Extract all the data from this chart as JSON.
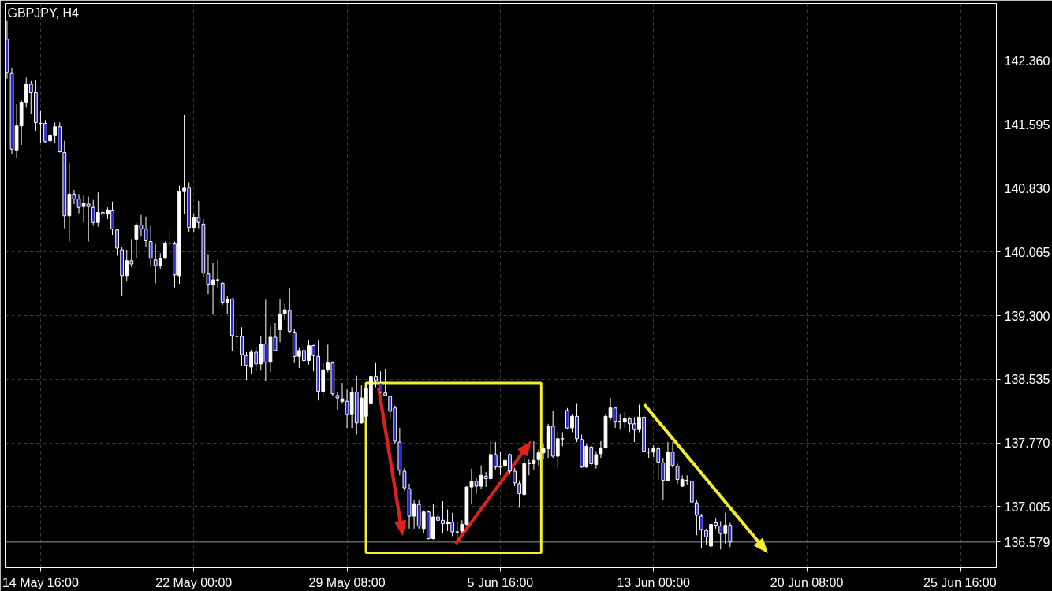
{
  "chart_data": {
    "type": "candlestick",
    "title": "GBPJPY, H4",
    "categories": [
      null,
      null,
      null,
      null,
      null,
      null,
      null,
      "14 May 16:00",
      null,
      null,
      null,
      null,
      null,
      null,
      null,
      null,
      null,
      null,
      null,
      null,
      null,
      null,
      null,
      null,
      null,
      null,
      null,
      null,
      null,
      null,
      null,
      null,
      null,
      null,
      null,
      null,
      null,
      null,
      null,
      "22 May 00:00",
      null,
      null,
      null,
      null,
      null,
      null,
      null,
      null,
      null,
      null,
      null,
      null,
      null,
      null,
      null,
      null,
      null,
      null,
      null,
      null,
      null,
      null,
      null,
      null,
      null,
      null,
      null,
      null,
      null,
      null,
      null,
      "29 May 08:00",
      null,
      null,
      null,
      null,
      null,
      null,
      null,
      null,
      null,
      null,
      null,
      null,
      null,
      null,
      null,
      null,
      null,
      null,
      null,
      null,
      null,
      null,
      null,
      null,
      null,
      null,
      null,
      null,
      null,
      null,
      null,
      "5 Jun 16:00",
      null,
      null,
      null,
      null,
      null,
      null,
      null,
      null,
      null,
      null,
      null,
      null,
      null,
      null,
      null,
      null,
      null,
      null,
      null,
      null,
      null,
      null,
      null,
      null,
      null,
      null,
      null,
      null,
      null,
      null,
      null,
      "13 Jun 00:00",
      null,
      null,
      null,
      null,
      null,
      null,
      null,
      null,
      null,
      null,
      null,
      null,
      null,
      null,
      null,
      null,
      null,
      null,
      null,
      null,
      null,
      null,
      null,
      null,
      null,
      null,
      null,
      null,
      null,
      null,
      null,
      "20 Jun 08:00",
      null,
      null,
      null,
      null,
      null,
      null,
      null,
      null,
      null,
      null,
      null,
      null,
      null,
      null,
      null,
      null,
      null,
      null,
      null,
      null,
      null,
      null,
      null,
      null,
      null,
      null,
      null,
      null,
      null,
      null,
      null,
      "25 Jun 16:00",
      null,
      null,
      null,
      null,
      null,
      null,
      null
    ],
    "ohlc": [
      [
        142.62,
        142.84,
        142.15,
        142.22
      ],
      [
        142.21,
        142.28,
        141.24,
        141.3
      ],
      [
        141.29,
        141.84,
        141.19,
        141.58
      ],
      [
        141.58,
        141.89,
        141.35,
        141.86
      ],
      [
        141.86,
        142.16,
        141.8,
        142.08
      ],
      [
        142.08,
        142.12,
        141.72,
        141.98
      ],
      [
        141.98,
        142.13,
        141.52,
        141.62
      ],
      [
        141.61,
        141.76,
        141.38,
        141.61
      ],
      [
        141.61,
        141.65,
        141.38,
        141.39
      ],
      [
        141.4,
        141.56,
        141.33,
        141.47
      ],
      [
        141.47,
        141.62,
        141.37,
        141.57
      ],
      [
        141.57,
        141.62,
        141.26,
        141.27
      ],
      [
        141.26,
        141.4,
        140.35,
        140.5
      ],
      [
        140.5,
        141.13,
        140.19,
        140.76
      ],
      [
        140.76,
        140.81,
        140.64,
        140.7
      ],
      [
        140.7,
        140.76,
        140.53,
        140.6
      ],
      [
        140.61,
        140.74,
        140.42,
        140.65
      ],
      [
        140.64,
        140.73,
        140.19,
        140.61
      ],
      [
        140.6,
        140.69,
        140.38,
        140.42
      ],
      [
        140.42,
        140.78,
        140.37,
        140.54
      ],
      [
        140.54,
        140.59,
        140.47,
        140.52
      ],
      [
        140.52,
        140.6,
        140.46,
        140.57
      ],
      [
        140.56,
        140.67,
        140.27,
        140.34
      ],
      [
        140.33,
        140.34,
        140.02,
        140.11
      ],
      [
        140.09,
        140.12,
        139.54,
        139.78
      ],
      [
        139.78,
        140.09,
        139.71,
        139.96
      ],
      [
        139.96,
        140.22,
        139.88,
        139.92
      ],
      [
        140.22,
        140.41,
        139.99,
        140.39
      ],
      [
        140.39,
        140.51,
        140.25,
        140.34
      ],
      [
        140.34,
        140.49,
        140.12,
        140.2
      ],
      [
        140.19,
        140.38,
        139.9,
        139.99
      ],
      [
        139.97,
        140.16,
        139.69,
        139.9
      ],
      [
        139.9,
        140.05,
        139.86,
        139.99
      ],
      [
        139.99,
        140.19,
        139.98,
        140.17
      ],
      [
        140.17,
        140.35,
        140.12,
        140.17
      ],
      [
        140.16,
        140.19,
        139.64,
        139.79
      ],
      [
        139.78,
        140.86,
        139.68,
        140.79
      ],
      [
        140.79,
        141.71,
        140.52,
        140.84
      ],
      [
        140.84,
        140.9,
        140.3,
        140.36
      ],
      [
        140.36,
        140.52,
        140.3,
        140.48
      ],
      [
        140.48,
        140.68,
        140.35,
        140.42
      ],
      [
        140.4,
        140.46,
        139.76,
        139.81
      ],
      [
        139.8,
        140.04,
        139.56,
        139.67
      ],
      [
        139.67,
        139.93,
        139.31,
        139.73
      ],
      [
        139.73,
        139.97,
        139.63,
        139.73
      ],
      [
        139.69,
        139.7,
        139.43,
        139.46
      ],
      [
        139.46,
        139.54,
        139.32,
        139.5
      ],
      [
        139.5,
        139.51,
        138.87,
        139.06
      ],
      [
        139.05,
        139.27,
        138.95,
        139.05
      ],
      [
        139.05,
        139.16,
        138.7,
        138.83
      ],
      [
        138.82,
        138.86,
        138.53,
        138.7
      ],
      [
        138.68,
        138.89,
        138.6,
        138.86
      ],
      [
        138.86,
        138.93,
        138.63,
        138.72
      ],
      [
        138.72,
        139.05,
        138.64,
        138.96
      ],
      [
        138.96,
        139.49,
        138.51,
        138.74
      ],
      [
        138.74,
        139.17,
        138.62,
        139.04
      ],
      [
        139.04,
        139.21,
        138.87,
        138.88
      ],
      [
        139.13,
        139.5,
        138.98,
        139.32
      ],
      [
        139.32,
        139.44,
        139.25,
        139.37
      ],
      [
        139.36,
        139.63,
        139.09,
        139.11
      ],
      [
        139.1,
        139.14,
        138.73,
        138.81
      ],
      [
        138.81,
        138.92,
        138.67,
        138.88
      ],
      [
        138.88,
        138.92,
        138.73,
        138.76
      ],
      [
        138.76,
        139.0,
        138.71,
        138.94
      ],
      [
        138.94,
        138.95,
        138.63,
        138.82
      ],
      [
        138.81,
        139.0,
        138.28,
        138.39
      ],
      [
        138.39,
        138.73,
        138.33,
        138.65
      ],
      [
        138.65,
        138.95,
        138.62,
        138.73
      ],
      [
        138.73,
        138.75,
        138.33,
        138.36
      ],
      [
        138.34,
        138.38,
        138.17,
        138.31
      ],
      [
        138.27,
        138.49,
        138.24,
        138.3
      ],
      [
        138.27,
        138.41,
        137.95,
        138.11
      ],
      [
        138.11,
        138.44,
        137.95,
        138.38
      ],
      [
        138.38,
        138.58,
        137.87,
        138.01
      ],
      [
        138.01,
        138.46,
        138.0,
        138.31
      ],
      [
        138.09,
        138.47,
        138.04,
        138.42
      ],
      [
        138.24,
        138.62,
        138.23,
        138.57
      ],
      [
        138.57,
        138.73,
        138.44,
        138.52
      ],
      [
        138.49,
        138.63,
        138.37,
        138.38
      ],
      [
        138.37,
        138.66,
        138.33,
        138.34
      ],
      [
        138.33,
        138.34,
        138.05,
        138.15
      ],
      [
        138.19,
        138.22,
        137.76,
        137.79
      ],
      [
        137.78,
        137.95,
        137.38,
        137.44
      ],
      [
        137.43,
        137.47,
        137.19,
        137.23
      ],
      [
        137.22,
        137.28,
        136.74,
        136.89
      ],
      [
        136.89,
        137.08,
        136.74,
        137.04
      ],
      [
        137.03,
        137.09,
        136.74,
        136.77
      ],
      [
        136.74,
        136.96,
        136.68,
        136.94
      ],
      [
        136.94,
        136.96,
        136.61,
        136.62
      ],
      [
        136.62,
        137.04,
        136.61,
        136.88
      ],
      [
        136.88,
        137.12,
        136.7,
        136.84
      ],
      [
        136.84,
        137.07,
        136.69,
        136.8
      ],
      [
        136.8,
        136.97,
        136.71,
        136.82
      ],
      [
        136.82,
        136.93,
        136.65,
        136.7
      ],
      [
        136.7,
        136.83,
        136.6,
        136.7
      ],
      [
        136.71,
        136.84,
        136.69,
        136.79
      ],
      [
        136.79,
        137.25,
        136.78,
        137.24
      ],
      [
        137.24,
        137.46,
        137.03,
        137.31
      ],
      [
        137.31,
        137.35,
        137.16,
        137.25
      ],
      [
        137.25,
        137.5,
        137.22,
        137.38
      ],
      [
        137.37,
        137.42,
        137.24,
        137.34
      ],
      [
        137.34,
        137.79,
        137.32,
        137.63
      ],
      [
        137.63,
        137.78,
        137.45,
        137.48
      ],
      [
        137.48,
        137.66,
        137.38,
        137.48
      ],
      [
        137.49,
        137.69,
        137.47,
        137.56
      ],
      [
        137.63,
        137.64,
        137.4,
        137.43
      ],
      [
        137.43,
        137.47,
        137.25,
        137.29
      ],
      [
        137.28,
        137.32,
        136.99,
        137.16
      ],
      [
        137.15,
        137.6,
        137.13,
        137.52
      ],
      [
        137.52,
        137.57,
        137.38,
        137.52
      ],
      [
        137.52,
        137.79,
        137.45,
        137.56
      ],
      [
        137.57,
        137.69,
        137.5,
        137.65
      ],
      [
        137.65,
        137.76,
        137.57,
        137.7
      ],
      [
        137.7,
        138.0,
        137.59,
        137.97
      ],
      [
        137.97,
        138.16,
        137.59,
        137.61
      ],
      [
        137.61,
        137.9,
        137.47,
        137.82
      ],
      [
        137.82,
        137.9,
        137.73,
        137.82
      ],
      [
        138.16,
        138.19,
        137.93,
        137.95
      ],
      [
        137.95,
        138.11,
        137.9,
        138.09
      ],
      [
        138.09,
        138.24,
        137.78,
        137.82
      ],
      [
        137.81,
        137.87,
        137.47,
        137.48
      ],
      [
        137.48,
        137.76,
        137.47,
        137.73
      ],
      [
        137.72,
        137.74,
        137.49,
        137.52
      ],
      [
        137.51,
        137.67,
        137.46,
        137.63
      ],
      [
        137.64,
        137.79,
        137.59,
        137.71
      ],
      [
        137.71,
        138.11,
        137.7,
        138.09
      ],
      [
        138.08,
        138.31,
        138.04,
        138.19
      ],
      [
        138.19,
        138.2,
        137.95,
        138.03
      ],
      [
        138.03,
        138.11,
        137.93,
        138.03
      ],
      [
        138.02,
        138.14,
        137.95,
        138.06
      ],
      [
        138.06,
        138.08,
        137.9,
        138.0
      ],
      [
        138.0,
        138.08,
        137.78,
        137.93
      ],
      [
        137.93,
        138.23,
        137.9,
        138.08
      ],
      [
        138.08,
        138.23,
        137.55,
        137.67
      ],
      [
        137.66,
        137.71,
        137.59,
        137.66
      ],
      [
        137.66,
        137.74,
        137.6,
        137.7
      ],
      [
        137.7,
        137.73,
        137.33,
        137.54
      ],
      [
        137.53,
        137.59,
        137.09,
        137.32
      ],
      [
        137.32,
        137.78,
        137.31,
        137.66
      ],
      [
        137.66,
        137.78,
        137.47,
        137.5
      ],
      [
        137.49,
        137.52,
        137.28,
        137.33
      ],
      [
        137.25,
        137.38,
        137.24,
        137.33
      ],
      [
        137.32,
        137.38,
        137.27,
        137.32
      ],
      [
        137.31,
        137.33,
        137.05,
        137.06
      ],
      [
        137.05,
        137.09,
        136.66,
        136.9
      ],
      [
        136.89,
        136.92,
        136.5,
        136.73
      ],
      [
        136.72,
        136.74,
        136.55,
        136.64
      ],
      [
        136.53,
        136.83,
        136.43,
        136.79
      ],
      [
        136.81,
        136.87,
        136.74,
        136.78
      ],
      [
        136.77,
        136.83,
        136.49,
        136.68
      ],
      [
        136.68,
        136.93,
        136.56,
        136.78
      ],
      [
        136.78,
        136.81,
        136.52,
        136.58
      ],
      null,
      null,
      null,
      null,
      null,
      null,
      null,
      null,
      null,
      null,
      null,
      null,
      null,
      null,
      null,
      null,
      null,
      null,
      null,
      null,
      null,
      null,
      null,
      null,
      null,
      null,
      null,
      null,
      null,
      null,
      null,
      null,
      null,
      null,
      null,
      null,
      null,
      null,
      null,
      null,
      null,
      null,
      null,
      null,
      null,
      null,
      null,
      null,
      null,
      null,
      null,
      null,
      null,
      null,
      null
    ],
    "ylim": [
      136.27,
      143.05
    ],
    "yticks": [
      {
        "value": 137.005,
        "label": "137.005"
      },
      {
        "value": 137.77,
        "label": "137.770"
      },
      {
        "value": 138.535,
        "label": "138.535"
      },
      {
        "value": 139.3,
        "label": "139.300"
      },
      {
        "value": 140.065,
        "label": "140.065"
      },
      {
        "value": 140.83,
        "label": "140.830"
      },
      {
        "value": 141.595,
        "label": "141.595"
      },
      {
        "value": 142.36,
        "label": "142.360"
      }
    ],
    "grid": true,
    "ref_lines": [
      {
        "axis": "y",
        "value": 136.579,
        "label": "136.579",
        "color": "#8c96a0"
      }
    ]
  }
}
